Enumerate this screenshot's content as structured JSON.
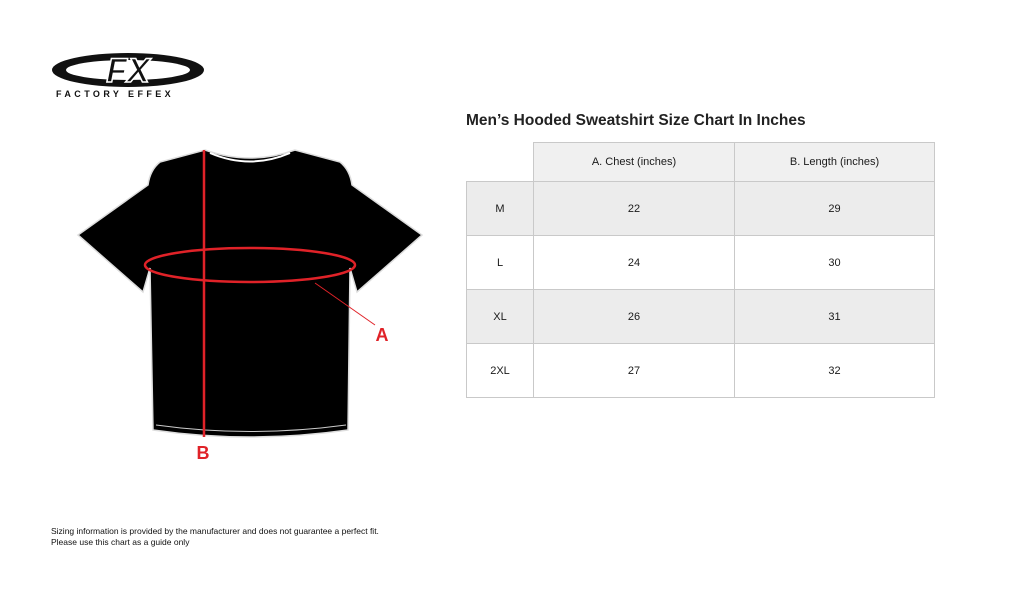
{
  "logo": {
    "brand": "FX",
    "tagline": "FACTORY EFFEX"
  },
  "diagram": {
    "label_a": "A",
    "label_b": "B",
    "accent_color": "#e02228"
  },
  "title": "Men’s Hooded Sweatshirt Size Chart In Inches",
  "table": {
    "headers": [
      "",
      "A. Chest (inches)",
      "B. Length (inches)"
    ],
    "rows": [
      {
        "size": "M",
        "chest": "22",
        "length": "29"
      },
      {
        "size": "L",
        "chest": "24",
        "length": "30"
      },
      {
        "size": "XL",
        "chest": "26",
        "length": "31"
      },
      {
        "size": "2XL",
        "chest": "27",
        "length": "32"
      }
    ]
  },
  "disclaimer": {
    "line1": "Sizing information is provided by the manufacturer and does not guarantee a perfect fit.",
    "line2": "Please use this chart as a guide only"
  }
}
